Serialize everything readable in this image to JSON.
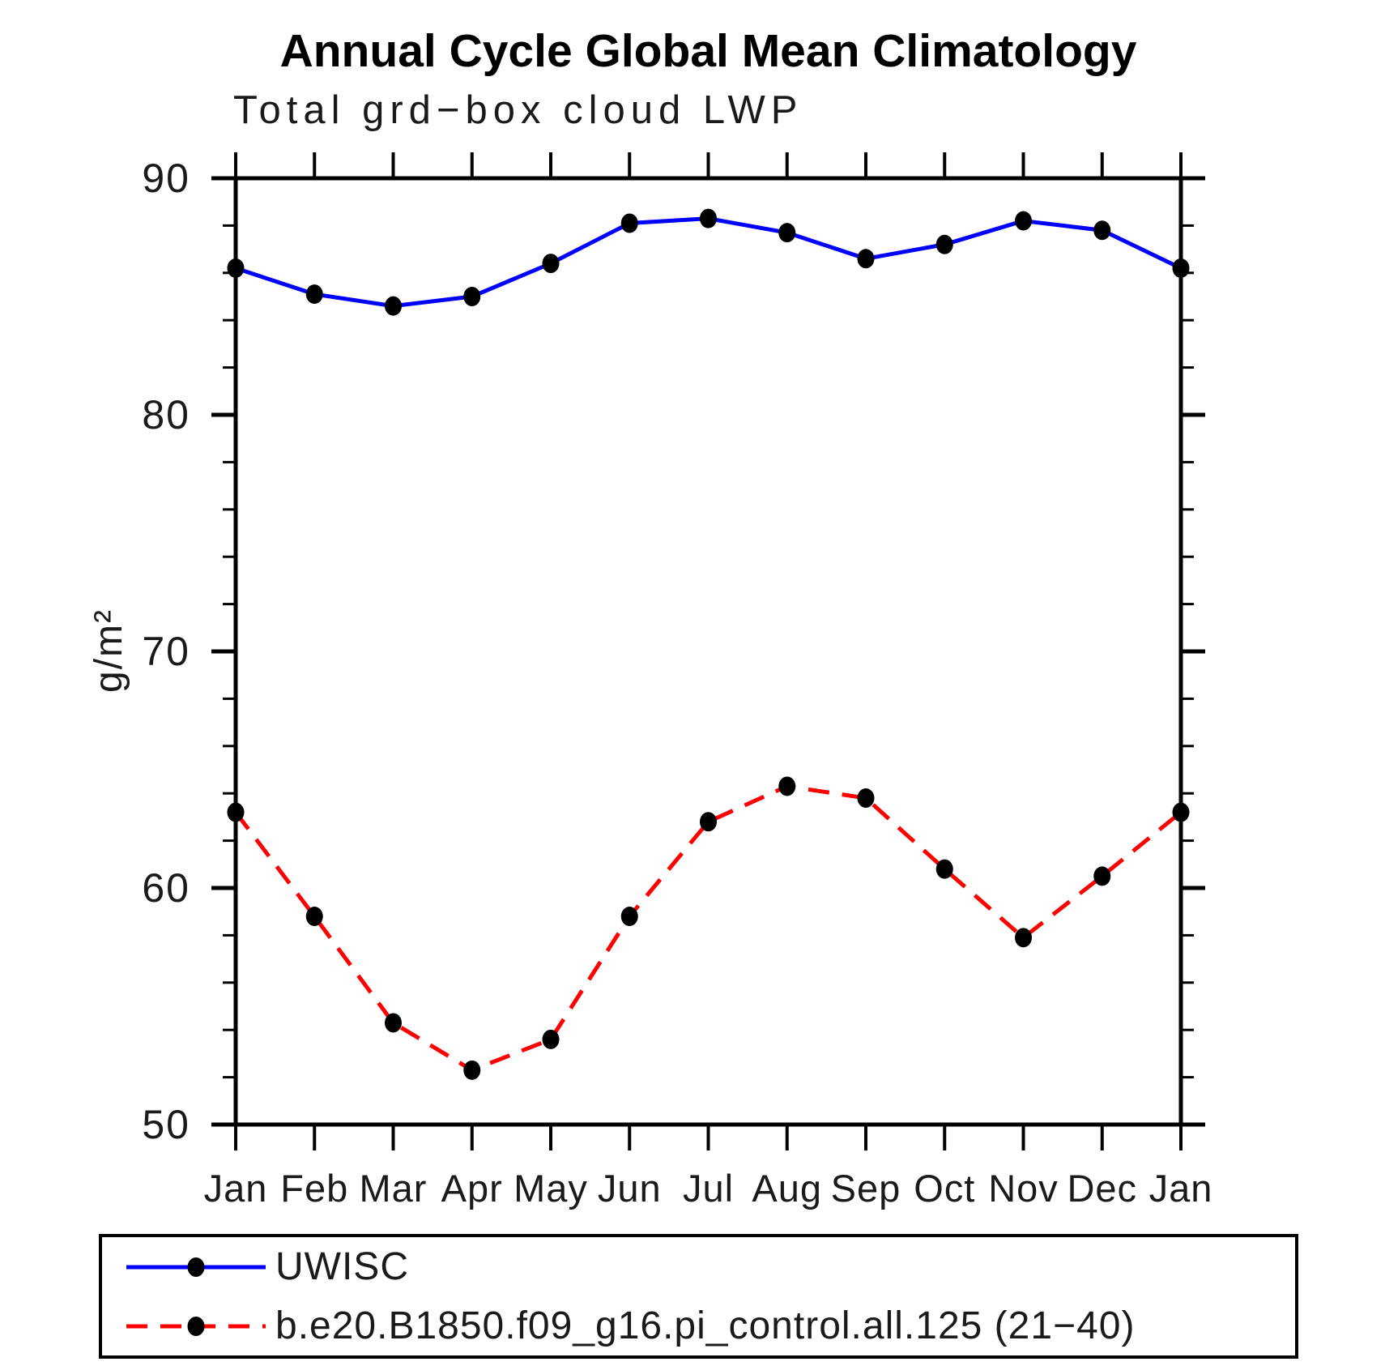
{
  "page": {
    "background": "#ffffff"
  },
  "chart_data": {
    "type": "line",
    "title": "Annual Cycle Global Mean Climatology",
    "subtitle": "Total grd−box cloud LWP",
    "xlabel": "",
    "ylabel": "g/m²",
    "categories": [
      "Jan",
      "Feb",
      "Mar",
      "Apr",
      "May",
      "Jun",
      "Jul",
      "Aug",
      "Sep",
      "Oct",
      "Nov",
      "Dec",
      "Jan"
    ],
    "ylim": [
      50,
      90
    ],
    "yticks_major": [
      90,
      80,
      70,
      60,
      50
    ],
    "ytick_labels": [
      "90",
      "80",
      "70",
      "60",
      "50"
    ],
    "ytick_minor_step": 2,
    "grid": false,
    "legend_position": "bottom",
    "axis_color": "#000000",
    "marker_color": "#000000",
    "series": [
      {
        "name": "UWISC",
        "color": "#0000ff",
        "style": "solid",
        "marker": "filled-circle",
        "values": [
          86.2,
          85.1,
          84.6,
          85.0,
          86.4,
          88.1,
          88.3,
          87.7,
          86.6,
          87.2,
          88.2,
          87.8,
          86.2
        ]
      },
      {
        "name": "b.e20.B1850.f09_g16.pi_control.all.125 (21−40)",
        "color": "#ff0000",
        "style": "dashed",
        "marker": "filled-circle",
        "values": [
          63.2,
          58.8,
          54.3,
          52.3,
          53.6,
          58.8,
          62.8,
          64.3,
          63.8,
          60.8,
          57.9,
          60.5,
          63.2
        ]
      }
    ]
  }
}
